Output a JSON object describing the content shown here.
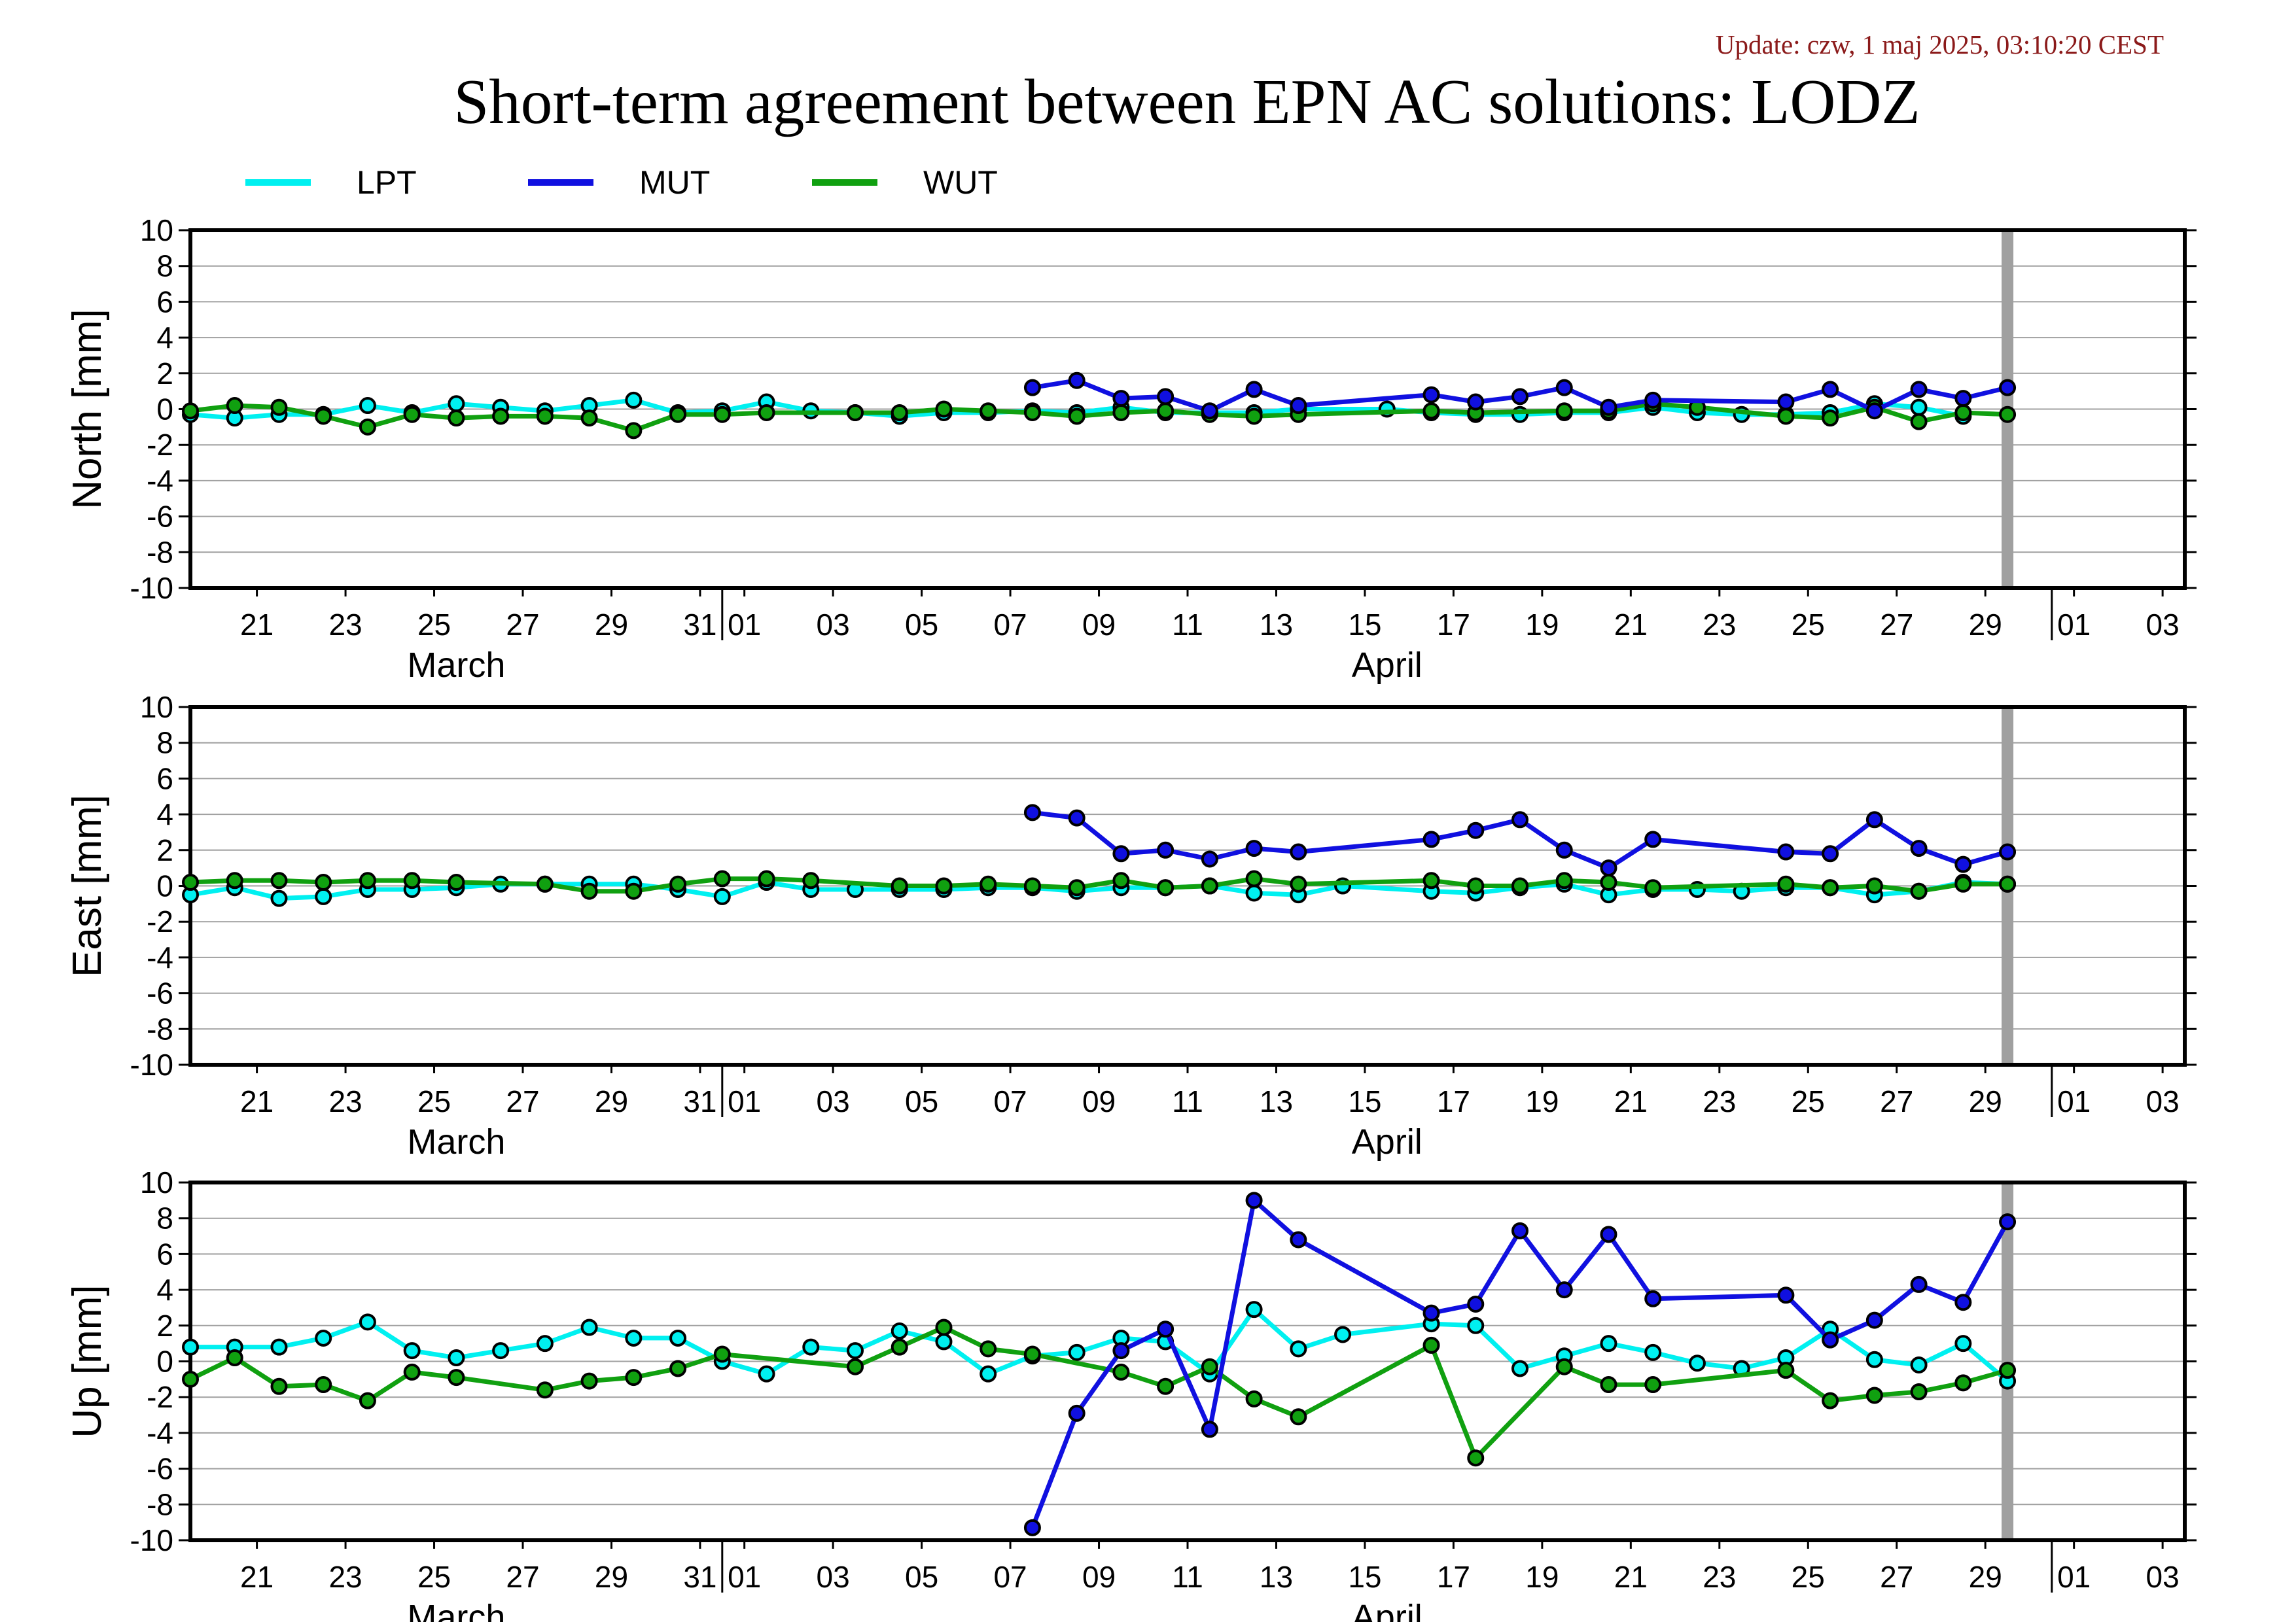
{
  "header": {
    "update": "Update: czw, 1 maj 2025, 03:10:20 CEST",
    "title": "Short-term agreement between EPN AC solutions: LODZ"
  },
  "legend": [
    {
      "name": "LPT",
      "color": "#00f0f0"
    },
    {
      "name": "MUT",
      "color": "#1010e0"
    },
    {
      "name": "WUT",
      "color": "#10a010"
    }
  ],
  "x_axis": {
    "tick_labels": [
      "21",
      "23",
      "25",
      "27",
      "29",
      "31",
      "01",
      "03",
      "05",
      "07",
      "09",
      "11",
      "13",
      "15",
      "17",
      "19",
      "21",
      "23",
      "25",
      "27",
      "29",
      "01",
      "03"
    ],
    "tick_days": [
      21,
      23,
      25,
      27,
      29,
      31,
      32,
      34,
      36,
      38,
      40,
      42,
      44,
      46,
      48,
      50,
      52,
      54,
      56,
      58,
      60,
      62,
      64
    ],
    "month_labels": [
      {
        "text": "March",
        "day": 25.5
      },
      {
        "text": "April",
        "day": 46.5
      }
    ],
    "month_boundaries": [
      31.5,
      61.5
    ],
    "range": [
      19.5,
      64.5
    ],
    "marker_day": 60.5
  },
  "chart_data": [
    {
      "type": "line",
      "ylabel": "North [mm]",
      "ylim": [
        -10,
        10
      ],
      "yticks": [
        10,
        8,
        6,
        4,
        2,
        0,
        -2,
        -4,
        -6,
        -8,
        -10
      ],
      "series": [
        {
          "name": "LPT",
          "x": [
            19.5,
            20.5,
            21.5,
            22.5,
            23.5,
            24.5,
            25.5,
            26.5,
            27.5,
            28.5,
            29.5,
            30.5,
            31.5,
            32.5,
            33.5,
            34.5,
            35.5,
            36.5,
            37.5,
            38.5,
            39.5,
            40.5,
            41.5,
            42.5,
            43.5,
            44.5,
            46.5,
            47.5,
            48.5,
            49.5,
            50.5,
            51.5,
            52.5,
            53.5,
            54.5,
            55.5,
            56.5,
            57.5,
            58.5,
            59.5
          ],
          "y": [
            -0.3,
            -0.5,
            -0.3,
            -0.3,
            0.2,
            -0.2,
            0.3,
            0.1,
            -0.1,
            0.2,
            0.5,
            -0.2,
            -0.1,
            0.4,
            -0.1,
            -0.2,
            -0.4,
            -0.2,
            -0.2,
            -0.1,
            -0.2,
            0.1,
            -0.2,
            -0.2,
            -0.2,
            0,
            0,
            -0.2,
            -0.3,
            -0.3,
            -0.2,
            -0.2,
            0.1,
            -0.2,
            -0.3,
            -0.3,
            -0.2,
            0.3,
            0.1,
            -0.4
          ]
        },
        {
          "name": "MUT",
          "x": [
            38.5,
            39.5,
            40.5,
            41.5,
            42.5,
            43.5,
            44.5,
            47.5,
            48.5,
            49.5,
            50.5,
            51.5,
            52.5,
            55.5,
            56.5,
            57.5,
            58.5,
            59.5,
            60.5
          ],
          "y": [
            1.2,
            1.6,
            0.6,
            0.7,
            -0.1,
            1.1,
            0.2,
            0.8,
            0.4,
            0.7,
            1.2,
            0.1,
            0.5,
            0.4,
            1.1,
            -0.1,
            1.1,
            0.6,
            1.2
          ]
        },
        {
          "name": "WUT",
          "x": [
            19.5,
            20.5,
            21.5,
            22.5,
            23.5,
            24.5,
            25.5,
            26.5,
            27.5,
            28.5,
            29.5,
            30.5,
            31.5,
            32.5,
            34.5,
            35.5,
            36.5,
            37.5,
            38.5,
            39.5,
            40.5,
            41.5,
            42.5,
            43.5,
            44.5,
            47.5,
            48.5,
            50.5,
            51.5,
            52.5,
            53.5,
            55.5,
            56.5,
            57.5,
            58.5,
            59.5,
            60.5
          ],
          "y": [
            -0.1,
            0.2,
            0.1,
            -0.4,
            -1.0,
            -0.3,
            -0.5,
            -0.4,
            -0.4,
            -0.5,
            -1.2,
            -0.3,
            -0.3,
            -0.2,
            -0.2,
            -0.2,
            0,
            -0.1,
            -0.2,
            -0.4,
            -0.2,
            -0.1,
            -0.3,
            -0.4,
            -0.3,
            -0.1,
            -0.2,
            -0.1,
            -0.1,
            0.3,
            0.1,
            -0.4,
            -0.5,
            0.1,
            -0.7,
            -0.2,
            -0.3
          ]
        }
      ]
    },
    {
      "type": "line",
      "ylabel": "East [mm]",
      "ylim": [
        -10,
        10
      ],
      "yticks": [
        10,
        8,
        6,
        4,
        2,
        0,
        -2,
        -4,
        -6,
        -8,
        -10
      ],
      "series": [
        {
          "name": "LPT",
          "x": [
            19.5,
            20.5,
            21.5,
            22.5,
            23.5,
            24.5,
            25.5,
            26.5,
            27.5,
            28.5,
            29.5,
            30.5,
            31.5,
            32.5,
            33.5,
            34.5,
            35.5,
            36.5,
            37.5,
            38.5,
            39.5,
            40.5,
            41.5,
            42.5,
            43.5,
            44.5,
            45.5,
            47.5,
            48.5,
            49.5,
            50.5,
            51.5,
            52.5,
            53.5,
            54.5,
            55.5,
            56.5,
            57.5,
            58.5,
            59.5,
            60.5
          ],
          "y": [
            -0.5,
            -0.1,
            -0.7,
            -0.6,
            -0.2,
            -0.2,
            -0.1,
            0.1,
            0.1,
            0.1,
            0.1,
            -0.2,
            -0.6,
            0.2,
            -0.2,
            -0.2,
            -0.2,
            -0.2,
            -0.1,
            -0.1,
            -0.3,
            -0.1,
            -0.1,
            0,
            -0.4,
            -0.5,
            0,
            -0.3,
            -0.4,
            -0.1,
            0.1,
            -0.5,
            -0.2,
            -0.2,
            -0.3,
            -0.1,
            -0.1,
            -0.5,
            -0.3,
            0.2,
            0.1
          ]
        },
        {
          "name": "MUT",
          "x": [
            38.5,
            39.5,
            40.5,
            41.5,
            42.5,
            43.5,
            44.5,
            47.5,
            48.5,
            49.5,
            50.5,
            51.5,
            52.5,
            55.5,
            56.5,
            57.5,
            58.5,
            59.5,
            60.5
          ],
          "y": [
            4.1,
            3.8,
            1.8,
            2.0,
            1.5,
            2.1,
            1.9,
            2.6,
            3.1,
            3.7,
            2.0,
            1.0,
            2.6,
            1.9,
            1.8,
            3.7,
            2.1,
            1.2,
            1.9
          ]
        },
        {
          "name": "WUT",
          "x": [
            19.5,
            20.5,
            21.5,
            22.5,
            23.5,
            24.5,
            25.5,
            27.5,
            28.5,
            29.5,
            30.5,
            31.5,
            32.5,
            33.5,
            35.5,
            36.5,
            37.5,
            38.5,
            39.5,
            40.5,
            41.5,
            42.5,
            43.5,
            44.5,
            47.5,
            48.5,
            49.5,
            50.5,
            51.5,
            52.5,
            55.5,
            56.5,
            57.5,
            58.5,
            59.5,
            60.5
          ],
          "y": [
            0.2,
            0.3,
            0.3,
            0.2,
            0.3,
            0.3,
            0.2,
            0.1,
            -0.3,
            -0.3,
            0.1,
            0.4,
            0.4,
            0.3,
            0,
            0,
            0.1,
            0,
            -0.1,
            0.3,
            -0.1,
            0,
            0.4,
            0.1,
            0.3,
            0,
            0,
            0.3,
            0.2,
            -0.1,
            0.1,
            -0.1,
            0,
            -0.3,
            0.1,
            0.1
          ]
        }
      ]
    },
    {
      "type": "line",
      "ylabel": "Up [mm]",
      "ylim": [
        -10,
        10
      ],
      "yticks": [
        10,
        8,
        6,
        4,
        2,
        0,
        -2,
        -4,
        -6,
        -8,
        -10
      ],
      "series": [
        {
          "name": "LPT",
          "x": [
            19.5,
            20.5,
            21.5,
            22.5,
            23.5,
            24.5,
            25.5,
            26.5,
            27.5,
            28.5,
            29.5,
            30.5,
            31.5,
            32.5,
            33.5,
            34.5,
            35.5,
            36.5,
            37.5,
            38.5,
            39.5,
            40.5,
            41.5,
            42.5,
            43.5,
            44.5,
            45.5,
            47.5,
            48.5,
            49.5,
            50.5,
            51.5,
            52.5,
            53.5,
            54.5,
            55.5,
            56.5,
            57.5,
            58.5,
            59.5,
            60.5
          ],
          "y": [
            0.8,
            0.8,
            0.8,
            1.3,
            2.2,
            0.6,
            0.2,
            0.6,
            1.0,
            1.9,
            1.3,
            1.3,
            0,
            -0.7,
            0.8,
            0.6,
            1.7,
            1.1,
            -0.7,
            0.3,
            0.5,
            1.3,
            1.1,
            -0.7,
            2.9,
            0.7,
            1.5,
            2.1,
            2.0,
            -0.4,
            0.3,
            1.0,
            0.5,
            -0.1,
            -0.4,
            0.2,
            1.8,
            0.1,
            -0.2,
            1.0,
            -1.1
          ]
        },
        {
          "name": "MUT",
          "x": [
            38.5,
            39.5,
            40.5,
            41.5,
            42.5,
            43.5,
            44.5,
            47.5,
            48.5,
            49.5,
            50.5,
            51.5,
            52.5,
            55.5,
            56.5,
            57.5,
            58.5,
            59.5,
            60.5
          ],
          "y": [
            -9.3,
            -2.9,
            0.6,
            1.8,
            -3.8,
            9.0,
            6.8,
            2.7,
            3.2,
            7.3,
            4.0,
            7.1,
            3.5,
            3.7,
            1.2,
            2.3,
            4.3,
            3.3,
            7.8
          ]
        },
        {
          "name": "WUT",
          "x": [
            19.5,
            20.5,
            21.5,
            22.5,
            23.5,
            24.5,
            25.5,
            27.5,
            28.5,
            29.5,
            30.5,
            31.5,
            34.5,
            35.5,
            36.5,
            37.5,
            38.5,
            40.5,
            41.5,
            42.5,
            43.5,
            44.5,
            47.5,
            48.5,
            50.5,
            51.5,
            52.5,
            55.5,
            56.5,
            57.5,
            58.5,
            59.5,
            60.5
          ],
          "y": [
            -1.0,
            0.2,
            -1.4,
            -1.3,
            -2.2,
            -0.6,
            -0.9,
            -1.6,
            -1.1,
            -0.9,
            -0.4,
            0.4,
            -0.3,
            0.8,
            1.9,
            0.7,
            0.4,
            -0.6,
            -1.4,
            -0.3,
            -2.1,
            -3.1,
            0.9,
            -5.4,
            -0.3,
            -1.3,
            -1.3,
            -0.5,
            -2.2,
            -1.9,
            -1.7,
            -1.2,
            -0.5
          ]
        }
      ]
    }
  ]
}
